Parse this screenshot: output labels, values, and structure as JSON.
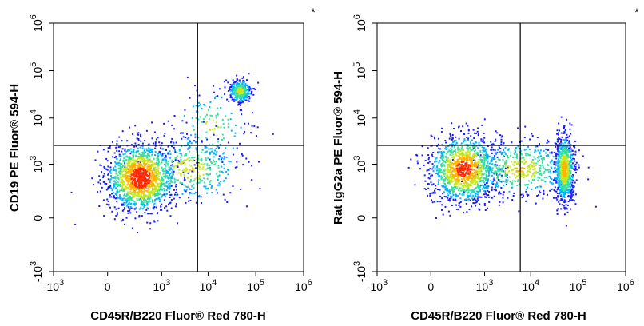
{
  "chart_data": [
    {
      "type": "scatter",
      "subtype": "flow-cytometry-density-dot-plot",
      "xlabel": "CD45R/B220 Fluor® Red 780-H",
      "ylabel": "CD19 PE Fluor® 594-H",
      "corner_mark": "*",
      "x_scale": "biexponential",
      "y_scale": "biexponential",
      "xlim": [
        -1000,
        1000000
      ],
      "ylim": [
        -1000,
        1000000
      ],
      "x_ticks": [
        {
          "value": -1000,
          "base": "-10",
          "exp": "3"
        },
        {
          "value": 0,
          "base": "0",
          "exp": ""
        },
        {
          "value": 1000,
          "base": "10",
          "exp": "3"
        },
        {
          "value": 10000,
          "base": "10",
          "exp": "4"
        },
        {
          "value": 100000,
          "base": "10",
          "exp": "5"
        },
        {
          "value": 1000000,
          "base": "10",
          "exp": "6"
        }
      ],
      "y_ticks": [
        {
          "value": -1000,
          "base": "-10",
          "exp": "3"
        },
        {
          "value": 0,
          "base": "0",
          "exp": ""
        },
        {
          "value": 1000,
          "base": "10",
          "exp": "3"
        },
        {
          "value": 10000,
          "base": "10",
          "exp": "4"
        },
        {
          "value": 100000,
          "base": "10",
          "exp": "5"
        },
        {
          "value": 1000000,
          "base": "10",
          "exp": "6"
        }
      ],
      "quadrant_gate": {
        "x": 6000,
        "y": 2600
      },
      "populations": [
        {
          "x": 300,
          "y": 500,
          "spread_x": 0.35,
          "spread_y": 0.35,
          "weight": 0.6
        },
        {
          "x": 45000,
          "y": 38000,
          "spread_x": 0.12,
          "spread_y": 0.13,
          "weight": 0.12
        },
        {
          "x": 4000,
          "y": 800,
          "spread_x": 0.55,
          "spread_y": 0.35,
          "weight": 0.15
        },
        {
          "x": 12000,
          "y": 7000,
          "spread_x": 0.4,
          "spread_y": 0.4,
          "weight": 0.06
        }
      ]
    },
    {
      "type": "scatter",
      "subtype": "flow-cytometry-density-dot-plot",
      "xlabel": "CD45R/B220 Fluor® Red 780-H",
      "ylabel": "Rat IgG2a PE Fluor® 594-H",
      "corner_mark": "*",
      "x_scale": "biexponential",
      "y_scale": "biexponential",
      "xlim": [
        -1000,
        1000000
      ],
      "ylim": [
        -1000,
        1000000
      ],
      "x_ticks": [
        {
          "value": -1000,
          "base": "-10",
          "exp": "3"
        },
        {
          "value": 0,
          "base": "0",
          "exp": ""
        },
        {
          "value": 1000,
          "base": "10",
          "exp": "3"
        },
        {
          "value": 10000,
          "base": "10",
          "exp": "4"
        },
        {
          "value": 100000,
          "base": "10",
          "exp": "5"
        },
        {
          "value": 1000000,
          "base": "10",
          "exp": "6"
        }
      ],
      "y_ticks": [
        {
          "value": -1000,
          "base": "-10",
          "exp": "3"
        },
        {
          "value": 0,
          "base": "0",
          "exp": ""
        },
        {
          "value": 1000,
          "base": "10",
          "exp": "3"
        },
        {
          "value": 10000,
          "base": "10",
          "exp": "4"
        },
        {
          "value": 100000,
          "base": "10",
          "exp": "5"
        },
        {
          "value": 1000000,
          "base": "10",
          "exp": "6"
        }
      ],
      "quadrant_gate": {
        "x": 6000,
        "y": 2600
      },
      "populations": [
        {
          "x": 300,
          "y": 800,
          "spread_x": 0.35,
          "spread_y": 0.35,
          "weight": 0.5
        },
        {
          "x": 50000,
          "y": 800,
          "spread_x": 0.1,
          "spread_y": 0.35,
          "weight": 0.3
        },
        {
          "x": 6000,
          "y": 800,
          "spread_x": 0.5,
          "spread_y": 0.3,
          "weight": 0.2
        }
      ]
    }
  ],
  "colors": {
    "density": [
      "#1a1aff",
      "#00b4ff",
      "#33e0a0",
      "#c8e61e",
      "#ffb400",
      "#ff2a00"
    ],
    "axis": "#000000",
    "gate": "#000000"
  }
}
